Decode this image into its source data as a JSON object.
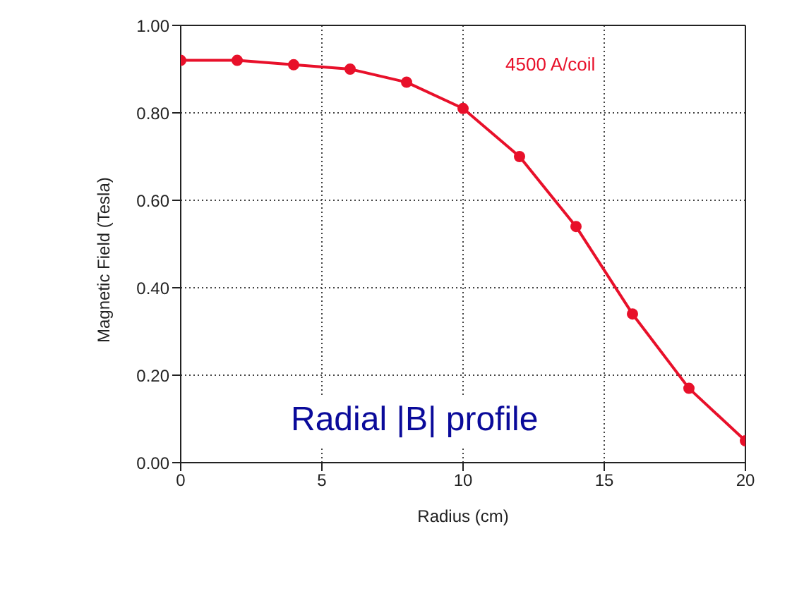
{
  "chart_data": {
    "type": "line",
    "xlabel": "Radius (cm)",
    "ylabel": "Magnetic Field (Tesla)",
    "x": [
      0,
      2,
      4,
      6,
      8,
      10,
      12,
      14,
      16,
      18,
      20
    ],
    "series": [
      {
        "color": "#e8102a",
        "values": [
          0.92,
          0.92,
          0.91,
          0.9,
          0.87,
          0.81,
          0.7,
          0.54,
          0.34,
          0.17,
          0.05
        ]
      }
    ],
    "xlim": [
      0,
      20
    ],
    "xticks": [
      0,
      5,
      10,
      15,
      20
    ],
    "ylim": [
      0,
      1
    ],
    "yticks": [
      {
        "value": 0,
        "label": "0.00"
      },
      {
        "value": 0.2,
        "label": "0.20"
      },
      {
        "value": 0.4,
        "label": "0.40"
      },
      {
        "value": 0.6,
        "label": "0.60"
      },
      {
        "value": 0.8,
        "label": "0.80"
      },
      {
        "value": 1,
        "label": "1.00"
      }
    ],
    "grid": true,
    "marker": "circle",
    "line_style": "solid",
    "annotations": [
      "4500 A/coil",
      "Radial |B| profile"
    ]
  }
}
